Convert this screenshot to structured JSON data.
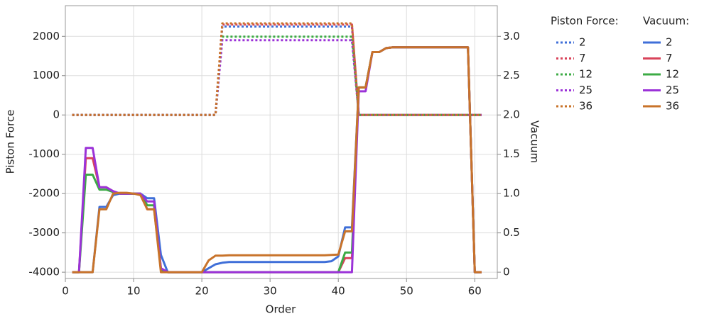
{
  "chart_data": {
    "type": "line",
    "x_label": "Order",
    "y_label": "Piston Force",
    "y2_label": "Vacuum",
    "legend_titles": [
      "Piston Force:",
      "Vacuum:"
    ],
    "xlim": [
      0,
      63.3
    ],
    "ylim": [
      -4160,
      2780
    ],
    "y2lim": [
      -0.08,
      3.39
    ],
    "xticks": [
      0,
      10,
      20,
      30,
      40,
      50,
      60
    ],
    "yticks": [
      -4000,
      -3000,
      -2000,
      -1000,
      0,
      1000,
      2000
    ],
    "y2ticks": [
      0,
      0.5,
      {
        "value": 1,
        "label": "1.0"
      },
      1.5,
      {
        "value": 2,
        "label": "2.0"
      },
      2.5,
      {
        "value": 3,
        "label": "3.0"
      }
    ],
    "grid": true,
    "x": [
      1,
      2,
      3,
      4,
      5,
      6,
      7,
      8,
      9,
      10,
      11,
      12,
      13,
      14,
      15,
      16,
      17,
      18,
      19,
      20,
      21,
      22,
      23,
      24,
      25,
      26,
      27,
      28,
      29,
      30,
      31,
      32,
      33,
      34,
      35,
      36,
      37,
      38,
      39,
      40,
      41,
      42,
      43,
      44,
      45,
      46,
      47,
      48,
      49,
      50,
      51,
      52,
      53,
      54,
      55,
      56,
      57,
      58,
      59,
      60,
      61
    ],
    "series": [
      {
        "name": "2",
        "color": "#3f6fd8",
        "dashed": true,
        "values": [
          0,
          0,
          0,
          0,
          0,
          0,
          0,
          0,
          0,
          0,
          0,
          0,
          0,
          0,
          0,
          0,
          0,
          0,
          0,
          0,
          0,
          0,
          2250,
          2250,
          2250,
          2250,
          2250,
          2250,
          2250,
          2250,
          2250,
          2250,
          2250,
          2250,
          2250,
          2250,
          2250,
          2250,
          2250,
          2250,
          2250,
          2250,
          0,
          0,
          0,
          0,
          0,
          0,
          0,
          0,
          0,
          0,
          0,
          0,
          0,
          0,
          0,
          0,
          0,
          0,
          0
        ]
      },
      {
        "name": "7",
        "color": "#d9435a",
        "dashed": true,
        "values": [
          0,
          0,
          0,
          0,
          0,
          0,
          0,
          0,
          0,
          0,
          0,
          0,
          0,
          0,
          0,
          0,
          0,
          0,
          0,
          0,
          0,
          0,
          2300,
          2300,
          2300,
          2300,
          2300,
          2300,
          2300,
          2300,
          2300,
          2300,
          2300,
          2300,
          2300,
          2300,
          2300,
          2300,
          2300,
          2300,
          2300,
          2300,
          0,
          0,
          0,
          0,
          0,
          0,
          0,
          0,
          0,
          0,
          0,
          0,
          0,
          0,
          0,
          0,
          0,
          0,
          0
        ]
      },
      {
        "name": "12",
        "color": "#3cab45",
        "dashed": true,
        "values": [
          0,
          0,
          0,
          0,
          0,
          0,
          0,
          0,
          0,
          0,
          0,
          0,
          0,
          0,
          0,
          0,
          0,
          0,
          0,
          0,
          0,
          0,
          1990,
          1990,
          1990,
          1990,
          1990,
          1990,
          1990,
          1990,
          1990,
          1990,
          1990,
          1990,
          1990,
          1990,
          1990,
          1990,
          1990,
          1990,
          1990,
          1990,
          0,
          0,
          0,
          0,
          0,
          0,
          0,
          0,
          0,
          0,
          0,
          0,
          0,
          0,
          0,
          0,
          0,
          0,
          0
        ]
      },
      {
        "name": "25",
        "color": "#9b32d8",
        "dashed": true,
        "values": [
          0,
          0,
          0,
          0,
          0,
          0,
          0,
          0,
          0,
          0,
          0,
          0,
          0,
          0,
          0,
          0,
          0,
          0,
          0,
          0,
          0,
          0,
          1900,
          1900,
          1900,
          1900,
          1900,
          1900,
          1900,
          1900,
          1900,
          1900,
          1900,
          1900,
          1900,
          1900,
          1900,
          1900,
          1900,
          1900,
          1900,
          1900,
          0,
          0,
          0,
          0,
          0,
          0,
          0,
          0,
          0,
          0,
          0,
          0,
          0,
          0,
          0,
          0,
          0,
          0,
          0
        ]
      },
      {
        "name": "36",
        "color": "#c8732a",
        "dashed": true,
        "values": [
          0,
          0,
          0,
          0,
          0,
          0,
          0,
          0,
          0,
          0,
          0,
          0,
          0,
          0,
          0,
          0,
          0,
          0,
          0,
          0,
          0,
          0,
          2330,
          2330,
          2330,
          2330,
          2330,
          2330,
          2330,
          2330,
          2330,
          2330,
          2330,
          2330,
          2330,
          2330,
          2330,
          2330,
          2330,
          2330,
          2330,
          2330,
          0,
          0,
          0,
          0,
          0,
          0,
          0,
          0,
          0,
          0,
          0,
          0,
          0,
          0,
          0,
          0,
          0,
          0,
          0
        ]
      },
      {
        "name": "2",
        "color": "#3f6fd8",
        "axis": "y2",
        "values": [
          0,
          0,
          0,
          0,
          0.83,
          0.83,
          0.98,
          1,
          1,
          1,
          1,
          0.94,
          0.94,
          0.22,
          0,
          0,
          0,
          0,
          0,
          0,
          0.05,
          0.1,
          0.12,
          0.13,
          0.13,
          0.13,
          0.13,
          0.13,
          0.13,
          0.13,
          0.13,
          0.13,
          0.13,
          0.13,
          0.13,
          0.13,
          0.13,
          0.13,
          0.14,
          0.2,
          0.57,
          0.57,
          2.35,
          2.35,
          2.8,
          2.8,
          2.85,
          2.86,
          2.86,
          2.86,
          2.86,
          2.86,
          2.86,
          2.86,
          2.86,
          2.86,
          2.86,
          2.86,
          2.86,
          0,
          0
        ]
      },
      {
        "name": "7",
        "color": "#d9435a",
        "axis": "y2",
        "values": [
          0,
          0,
          1.45,
          1.45,
          1.08,
          1.08,
          1.03,
          1,
          1,
          1,
          1,
          0.8,
          0.8,
          0.05,
          0,
          0,
          0,
          0,
          0,
          0,
          0,
          0,
          0,
          0,
          0,
          0,
          0,
          0,
          0,
          0,
          0,
          0,
          0,
          0,
          0,
          0,
          0,
          0,
          0,
          0,
          0.18,
          0.18,
          2.35,
          2.35,
          2.8,
          2.8,
          2.85,
          2.86,
          2.86,
          2.86,
          2.86,
          2.86,
          2.86,
          2.86,
          2.86,
          2.86,
          2.86,
          2.86,
          2.86,
          0,
          0
        ]
      },
      {
        "name": "12",
        "color": "#3cab45",
        "axis": "y2",
        "values": [
          0,
          0,
          1.24,
          1.24,
          1.05,
          1.05,
          1.02,
          1,
          1,
          1,
          1,
          0.85,
          0.85,
          0.03,
          0,
          0,
          0,
          0,
          0,
          0,
          0,
          0,
          0,
          0,
          0,
          0,
          0,
          0,
          0,
          0,
          0,
          0,
          0,
          0,
          0,
          0,
          0,
          0,
          0,
          0,
          0.25,
          0.25,
          2.35,
          2.35,
          2.8,
          2.8,
          2.85,
          2.86,
          2.86,
          2.86,
          2.86,
          2.86,
          2.86,
          2.86,
          2.86,
          2.86,
          2.86,
          2.86,
          2.86,
          0,
          0
        ]
      },
      {
        "name": "25",
        "color": "#9b32d8",
        "axis": "y2",
        "values": [
          0,
          0,
          1.58,
          1.58,
          1.08,
          1.08,
          1.03,
          1,
          1,
          1,
          1,
          0.9,
          0.9,
          0.05,
          0,
          0,
          0,
          0,
          0,
          0,
          0,
          0,
          0,
          0,
          0,
          0,
          0,
          0,
          0,
          0,
          0,
          0,
          0,
          0,
          0,
          0,
          0,
          0,
          0,
          0,
          0,
          0,
          2.3,
          2.3,
          2.8,
          2.8,
          2.85,
          2.86,
          2.86,
          2.86,
          2.86,
          2.86,
          2.86,
          2.86,
          2.86,
          2.86,
          2.86,
          2.86,
          2.86,
          0,
          0
        ]
      },
      {
        "name": "36",
        "color": "#c8732a",
        "axis": "y2",
        "values": [
          0,
          0,
          0,
          0,
          0.8,
          0.8,
          1,
          1.01,
          1.01,
          1,
          0.98,
          0.8,
          0.8,
          0,
          0,
          0,
          0,
          0,
          0,
          0,
          0.15,
          0.21,
          0.21,
          0.215,
          0.215,
          0.215,
          0.215,
          0.215,
          0.215,
          0.215,
          0.215,
          0.215,
          0.215,
          0.215,
          0.215,
          0.215,
          0.215,
          0.215,
          0.22,
          0.225,
          0.52,
          0.52,
          2.35,
          2.35,
          2.8,
          2.8,
          2.85,
          2.86,
          2.86,
          2.86,
          2.86,
          2.86,
          2.86,
          2.86,
          2.86,
          2.86,
          2.86,
          2.86,
          2.86,
          0,
          0
        ]
      }
    ]
  }
}
